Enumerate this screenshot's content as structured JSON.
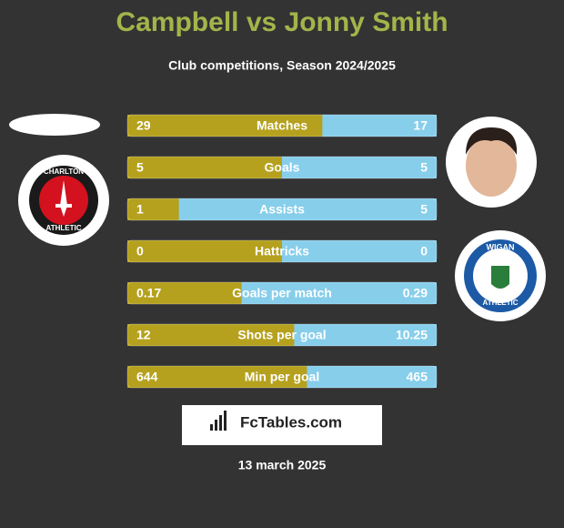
{
  "header": {
    "title": "Campbell vs Jonny Smith",
    "subtitle": "Club competitions, Season 2024/2025"
  },
  "colors": {
    "left": "#b5a11e",
    "right": "#87ceeb",
    "title": "#a3b54a"
  },
  "rows": [
    {
      "label": "Matches",
      "left": 29,
      "right": 17
    },
    {
      "label": "Goals",
      "left": 5,
      "right": 5
    },
    {
      "label": "Assists",
      "left": 1,
      "right": 5
    },
    {
      "label": "Hattricks",
      "left": 0,
      "right": 0
    },
    {
      "label": "Goals per match",
      "left": 0.17,
      "right": 0.29
    },
    {
      "label": "Shots per goal",
      "left": 12,
      "right": 10.25
    },
    {
      "label": "Min per goal",
      "left": 644,
      "right": 465
    }
  ],
  "left_logo": {
    "top": "CHARLTON",
    "bottom": "ATHLETIC"
  },
  "right_logo": {
    "top": "WIGAN",
    "bottom": "ATHLETIC"
  },
  "brand": "FcTables.com",
  "date": "13 march 2025"
}
